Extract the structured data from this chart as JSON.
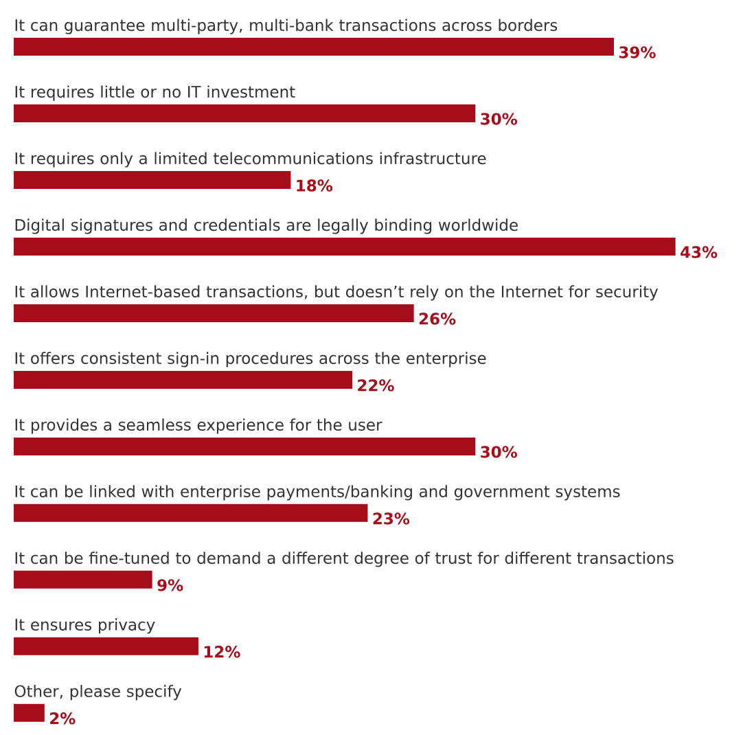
{
  "chart_data": {
    "type": "bar",
    "orientation": "horizontal",
    "color": "#a50d1a",
    "categories": [
      "It can guarantee multi-party, multi-bank transactions across borders",
      "It requires little or no IT investment",
      "It requires only a limited telecommunications infrastructure",
      "Digital signatures and credentials are legally binding worldwide",
      "It allows Internet-based transactions, but doesn’t rely on the Internet for security",
      "It offers consistent sign-in procedures across the enterprise",
      "It provides a seamless experience for the user",
      "It can be linked with enterprise payments/banking and government systems",
      "It can be fine-tuned to demand a different degree of trust for different transactions",
      "It ensures privacy",
      "Other, please specify"
    ],
    "values": [
      39,
      30,
      18,
      43,
      26,
      22,
      30,
      23,
      9,
      12,
      2
    ],
    "value_labels": [
      "39%",
      "30%",
      "18%",
      "43%",
      "26%",
      "22%",
      "30%",
      "23%",
      "9%",
      "12%",
      "2%"
    ]
  }
}
